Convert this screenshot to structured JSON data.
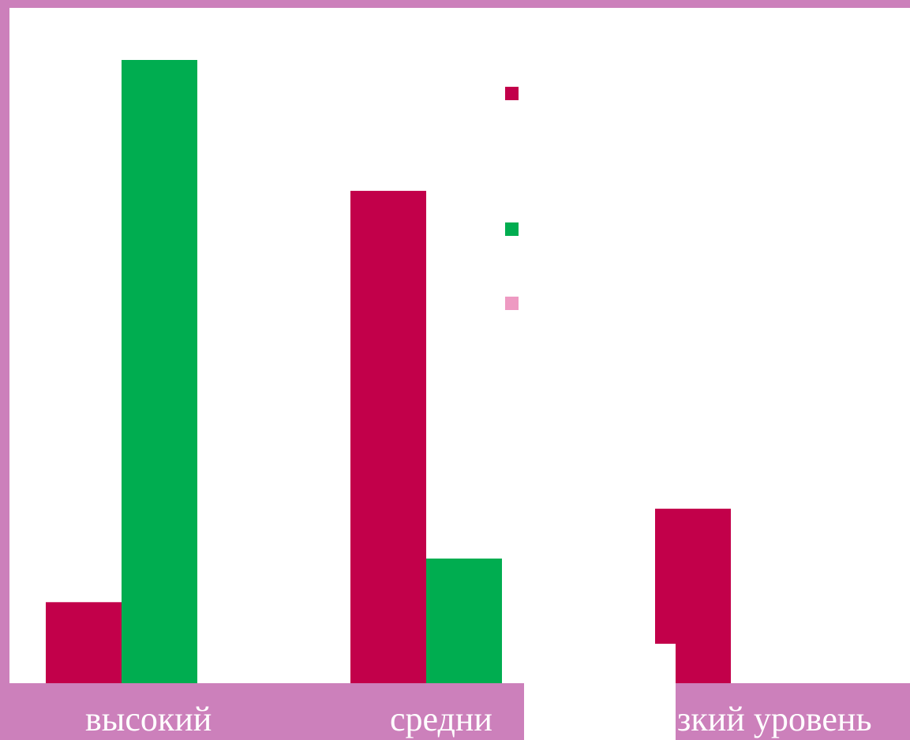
{
  "chart_data": {
    "type": "bar",
    "categories": [
      "высокий",
      "средний",
      "низкий уровень"
    ],
    "category_labels_visible": [
      "высокий",
      "средни",
      "зкий уровень"
    ],
    "series": [
      {
        "color": "#c2004a",
        "values": [
          13,
          79,
          28
        ]
      },
      {
        "color": "#00ad50",
        "values": [
          100,
          20,
          0
        ]
      },
      {
        "color": "#ee9ac2",
        "values": [
          0,
          0,
          0
        ]
      }
    ],
    "ylim": [
      0,
      100
    ],
    "grid": false,
    "legend_placement": "top-right",
    "background": "#cc80bb"
  }
}
